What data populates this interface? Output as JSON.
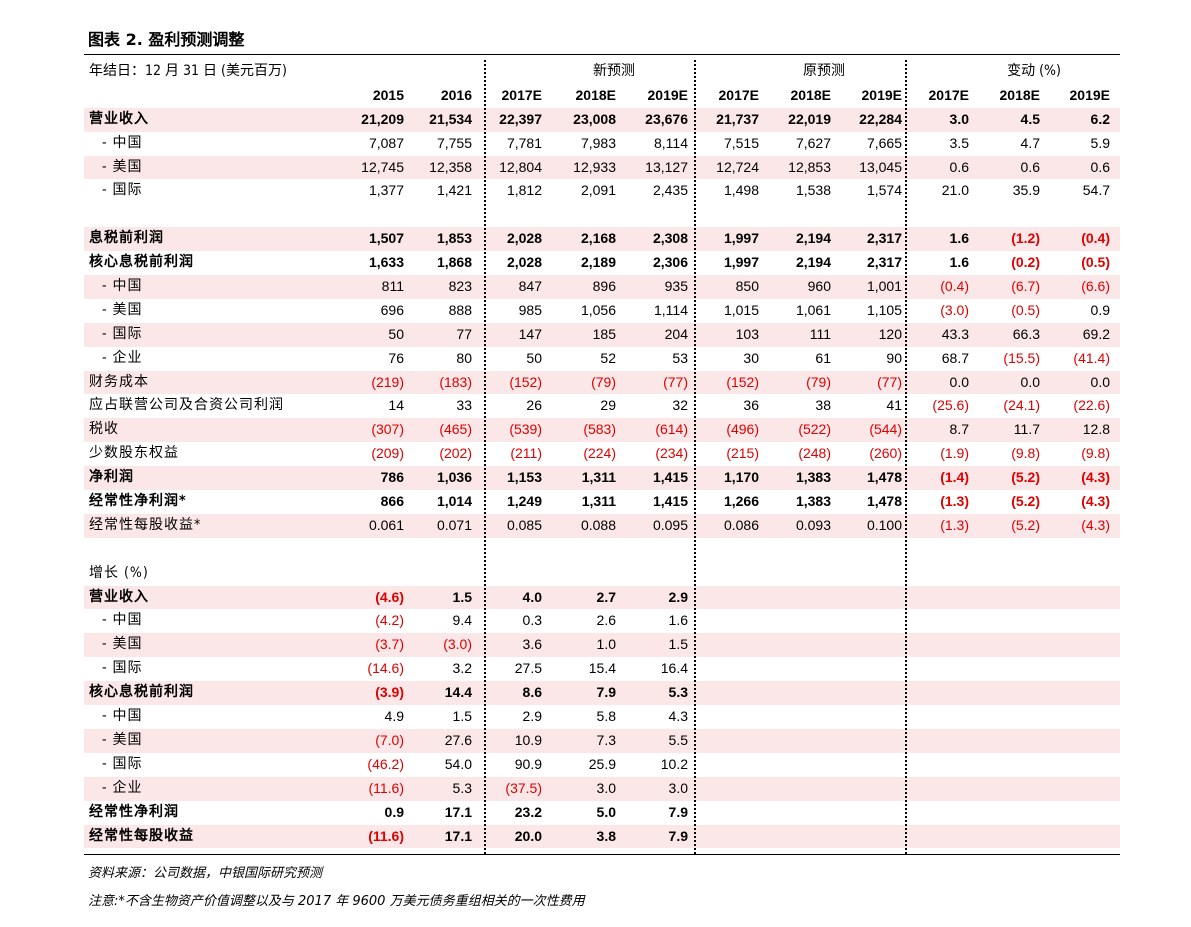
{
  "title": "图表 2. 盈利预测调整",
  "header": {
    "unit_label": "年结日：12 月 31 日 (美元百万)",
    "group_new": "新预测",
    "group_old": "原预测",
    "group_change": "变动 (%)",
    "columns": [
      "2015",
      "2016",
      "2017E",
      "2018E",
      "2019E",
      "2017E",
      "2018E",
      "2019E",
      "2017E",
      "2018E",
      "2019E"
    ]
  },
  "rows": [
    {
      "label": "营业收入",
      "bold": true,
      "shade": true,
      "indent": false,
      "cells": [
        "21,209",
        "21,534",
        "22,397",
        "23,008",
        "23,676",
        "21,737",
        "22,019",
        "22,284",
        "3.0",
        "4.5",
        "6.2"
      ]
    },
    {
      "label": "- 中国",
      "bold": false,
      "shade": false,
      "indent": true,
      "cells": [
        "7,087",
        "7,755",
        "7,781",
        "7,983",
        "8,114",
        "7,515",
        "7,627",
        "7,665",
        "3.5",
        "4.7",
        "5.9"
      ]
    },
    {
      "label": "- 美国",
      "bold": false,
      "shade": true,
      "indent": true,
      "cells": [
        "12,745",
        "12,358",
        "12,804",
        "12,933",
        "13,127",
        "12,724",
        "12,853",
        "13,045",
        "0.6",
        "0.6",
        "0.6"
      ]
    },
    {
      "label": "- 国际",
      "bold": false,
      "shade": false,
      "indent": true,
      "cells": [
        "1,377",
        "1,421",
        "1,812",
        "2,091",
        "2,435",
        "1,498",
        "1,538",
        "1,574",
        "21.0",
        "35.9",
        "54.7"
      ]
    },
    {
      "label": "",
      "bold": false,
      "shade": false,
      "indent": false,
      "cells": [
        "",
        "",
        "",
        "",
        "",
        "",
        "",
        "",
        "",
        "",
        ""
      ]
    },
    {
      "label": "息税前利润",
      "bold": true,
      "shade": true,
      "indent": false,
      "cells": [
        "1,507",
        "1,853",
        "2,028",
        "2,168",
        "2,308",
        "1,997",
        "2,194",
        "2,317",
        "1.6",
        "(1.2)",
        "(0.4)"
      ]
    },
    {
      "label": "核心息税前利润",
      "bold": true,
      "shade": false,
      "indent": false,
      "cells": [
        "1,633",
        "1,868",
        "2,028",
        "2,189",
        "2,306",
        "1,997",
        "2,194",
        "2,317",
        "1.6",
        "(0.2)",
        "(0.5)"
      ]
    },
    {
      "label": "- 中国",
      "bold": false,
      "shade": true,
      "indent": true,
      "cells": [
        "811",
        "823",
        "847",
        "896",
        "935",
        "850",
        "960",
        "1,001",
        "(0.4)",
        "(6.7)",
        "(6.6)"
      ]
    },
    {
      "label": "- 美国",
      "bold": false,
      "shade": false,
      "indent": true,
      "cells": [
        "696",
        "888",
        "985",
        "1,056",
        "1,114",
        "1,015",
        "1,061",
        "1,105",
        "(3.0)",
        "(0.5)",
        "0.9"
      ]
    },
    {
      "label": "- 国际",
      "bold": false,
      "shade": true,
      "indent": true,
      "cells": [
        "50",
        "77",
        "147",
        "185",
        "204",
        "103",
        "111",
        "120",
        "43.3",
        "66.3",
        "69.2"
      ]
    },
    {
      "label": "- 企业",
      "bold": false,
      "shade": false,
      "indent": true,
      "cells": [
        "76",
        "80",
        "50",
        "52",
        "53",
        "30",
        "61",
        "90",
        "68.7",
        "(15.5)",
        "(41.4)"
      ]
    },
    {
      "label": "财务成本",
      "bold": false,
      "shade": true,
      "indent": false,
      "cells": [
        "(219)",
        "(183)",
        "(152)",
        "(79)",
        "(77)",
        "(152)",
        "(79)",
        "(77)",
        "0.0",
        "0.0",
        "0.0"
      ]
    },
    {
      "label": "应占联营公司及合资公司利润",
      "bold": false,
      "shade": false,
      "indent": false,
      "cells": [
        "14",
        "33",
        "26",
        "29",
        "32",
        "36",
        "38",
        "41",
        "(25.6)",
        "(24.1)",
        "(22.6)"
      ]
    },
    {
      "label": "税收",
      "bold": false,
      "shade": true,
      "indent": false,
      "cells": [
        "(307)",
        "(465)",
        "(539)",
        "(583)",
        "(614)",
        "(496)",
        "(522)",
        "(544)",
        "8.7",
        "11.7",
        "12.8"
      ]
    },
    {
      "label": "少数股东权益",
      "bold": false,
      "shade": false,
      "indent": false,
      "cells": [
        "(209)",
        "(202)",
        "(211)",
        "(224)",
        "(234)",
        "(215)",
        "(248)",
        "(260)",
        "(1.9)",
        "(9.8)",
        "(9.8)"
      ]
    },
    {
      "label": "净利润",
      "bold": true,
      "shade": true,
      "indent": false,
      "cells": [
        "786",
        "1,036",
        "1,153",
        "1,311",
        "1,415",
        "1,170",
        "1,383",
        "1,478",
        "(1.4)",
        "(5.2)",
        "(4.3)"
      ]
    },
    {
      "label": "经常性净利润*",
      "bold": true,
      "shade": false,
      "indent": false,
      "cells": [
        "866",
        "1,014",
        "1,249",
        "1,311",
        "1,415",
        "1,266",
        "1,383",
        "1,478",
        "(1.3)",
        "(5.2)",
        "(4.3)"
      ]
    },
    {
      "label": "经常性每股收益*",
      "bold": false,
      "shade": true,
      "indent": false,
      "cells": [
        "0.061",
        "0.071",
        "0.085",
        "0.088",
        "0.095",
        "0.086",
        "0.093",
        "0.100",
        "(1.3)",
        "(5.2)",
        "(4.3)"
      ]
    },
    {
      "label": "",
      "bold": false,
      "shade": false,
      "indent": false,
      "cells": [
        "",
        "",
        "",
        "",
        "",
        "",
        "",
        "",
        "",
        "",
        ""
      ]
    },
    {
      "label": "增长 (%)",
      "bold": false,
      "shade": false,
      "indent": false,
      "cells": [
        "",
        "",
        "",
        "",
        "",
        "",
        "",
        "",
        "",
        "",
        ""
      ]
    },
    {
      "label": "营业收入",
      "bold": true,
      "shade": true,
      "indent": false,
      "cells": [
        "(4.6)",
        "1.5",
        "4.0",
        "2.7",
        "2.9",
        "",
        "",
        "",
        "",
        "",
        ""
      ]
    },
    {
      "label": "- 中国",
      "bold": false,
      "shade": false,
      "indent": true,
      "cells": [
        "(4.2)",
        "9.4",
        "0.3",
        "2.6",
        "1.6",
        "",
        "",
        "",
        "",
        "",
        ""
      ]
    },
    {
      "label": "- 美国",
      "bold": false,
      "shade": true,
      "indent": true,
      "cells": [
        "(3.7)",
        "(3.0)",
        "3.6",
        "1.0",
        "1.5",
        "",
        "",
        "",
        "",
        "",
        ""
      ]
    },
    {
      "label": "- 国际",
      "bold": false,
      "shade": false,
      "indent": true,
      "cells": [
        "(14.6)",
        "3.2",
        "27.5",
        "15.4",
        "16.4",
        "",
        "",
        "",
        "",
        "",
        ""
      ]
    },
    {
      "label": "核心息税前利润",
      "bold": true,
      "shade": true,
      "indent": false,
      "cells": [
        "(3.9)",
        "14.4",
        "8.6",
        "7.9",
        "5.3",
        "",
        "",
        "",
        "",
        "",
        ""
      ]
    },
    {
      "label": "- 中国",
      "bold": false,
      "shade": false,
      "indent": true,
      "cells": [
        "4.9",
        "1.5",
        "2.9",
        "5.8",
        "4.3",
        "",
        "",
        "",
        "",
        "",
        ""
      ]
    },
    {
      "label": "- 美国",
      "bold": false,
      "shade": true,
      "indent": true,
      "cells": [
        "(7.0)",
        "27.6",
        "10.9",
        "7.3",
        "5.5",
        "",
        "",
        "",
        "",
        "",
        ""
      ]
    },
    {
      "label": "- 国际",
      "bold": false,
      "shade": false,
      "indent": true,
      "cells": [
        "(46.2)",
        "54.0",
        "90.9",
        "25.9",
        "10.2",
        "",
        "",
        "",
        "",
        "",
        ""
      ]
    },
    {
      "label": "- 企业",
      "bold": false,
      "shade": true,
      "indent": true,
      "cells": [
        "(11.6)",
        "5.3",
        "(37.5)",
        "3.0",
        "3.0",
        "",
        "",
        "",
        "",
        "",
        ""
      ]
    },
    {
      "label": "经常性净利润",
      "bold": true,
      "shade": false,
      "indent": false,
      "cells": [
        "0.9",
        "17.1",
        "23.2",
        "5.0",
        "7.9",
        "",
        "",
        "",
        "",
        "",
        ""
      ]
    },
    {
      "label": "经常性每股收益",
      "bold": true,
      "shade": true,
      "indent": false,
      "cells": [
        "(11.6)",
        "17.1",
        "20.0",
        "3.8",
        "7.9",
        "",
        "",
        "",
        "",
        "",
        ""
      ]
    }
  ],
  "source": "资料来源：公司数据，中银国际研究预测",
  "note": "注意:*不含生物资产价值调整以及与 2017 年 9600 万美元债务重组相关的一次性费用",
  "colors": {
    "shade": "#fbe7e7",
    "negative": "#e00000"
  }
}
